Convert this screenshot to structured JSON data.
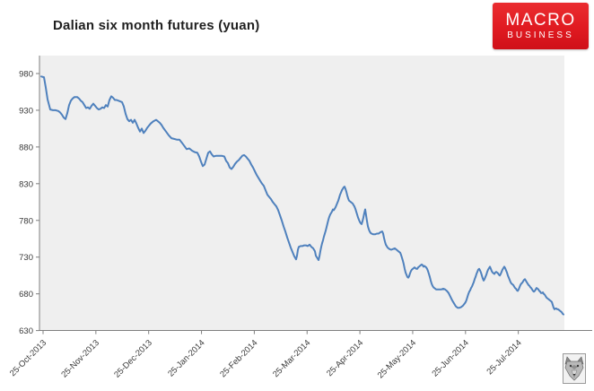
{
  "header": {
    "title": "Dalian six month futures (yuan)",
    "logo": {
      "line1": "MACRO",
      "line2": "BUSINESS",
      "bg_color": "#e01a21",
      "text_color": "#ffffff"
    }
  },
  "footer_logo": {
    "icon": "wolf-head"
  },
  "chart_data": {
    "type": "line",
    "title": "Dalian six month futures (yuan)",
    "legend": false,
    "grid": false,
    "plot_bg": "#efefef",
    "axis_color": "#7f7f7f",
    "tick_text_color": "#3a3a3a",
    "line_color": "#4f81bd",
    "ylim": [
      630,
      1004
    ],
    "y_tick_labels": [
      "980",
      "930",
      "880",
      "830",
      "780",
      "730",
      "680",
      "630"
    ],
    "y_tick_values": [
      980,
      930,
      880,
      830,
      780,
      730,
      680,
      630
    ],
    "x_tick_labels": [
      "25-Oct-2013",
      "25-Nov-2013",
      "25-Dec-2013",
      "25-Jan-2014",
      "25-Feb-2014",
      "25-Mar-2014",
      "25-Apr-2014",
      "25-May-2014",
      "25-Jun-2014",
      "25-Jul-2014"
    ],
    "points": [
      [
        46,
        976
      ],
      [
        49,
        975
      ],
      [
        51,
        961
      ],
      [
        53,
        945
      ],
      [
        56,
        931
      ],
      [
        59,
        930
      ],
      [
        62,
        930
      ],
      [
        65,
        929
      ],
      [
        67,
        927
      ],
      [
        69,
        924
      ],
      [
        71,
        920
      ],
      [
        73,
        918
      ],
      [
        75,
        926
      ],
      [
        77,
        937
      ],
      [
        79,
        943
      ],
      [
        81,
        946
      ],
      [
        83,
        948
      ],
      [
        86,
        948
      ],
      [
        88,
        946
      ],
      [
        90,
        943
      ],
      [
        92,
        941
      ],
      [
        94,
        937
      ],
      [
        96,
        933
      ],
      [
        98,
        934
      ],
      [
        100,
        932
      ],
      [
        102,
        936
      ],
      [
        104,
        939
      ],
      [
        106,
        936
      ],
      [
        108,
        933
      ],
      [
        110,
        931
      ],
      [
        112,
        932
      ],
      [
        114,
        934
      ],
      [
        116,
        933
      ],
      [
        118,
        937
      ],
      [
        120,
        935
      ],
      [
        122,
        944
      ],
      [
        124,
        949
      ],
      [
        126,
        947
      ],
      [
        128,
        944
      ],
      [
        130,
        944
      ],
      [
        132,
        943
      ],
      [
        134,
        942
      ],
      [
        136,
        941
      ],
      [
        138,
        935
      ],
      [
        140,
        925
      ],
      [
        142,
        918
      ],
      [
        144,
        915
      ],
      [
        146,
        917
      ],
      [
        148,
        913
      ],
      [
        150,
        917
      ],
      [
        152,
        912
      ],
      [
        154,
        906
      ],
      [
        156,
        901
      ],
      [
        158,
        905
      ],
      [
        160,
        899
      ],
      [
        162,
        902
      ],
      [
        164,
        906
      ],
      [
        166,
        909
      ],
      [
        168,
        912
      ],
      [
        171,
        915
      ],
      [
        174,
        917
      ],
      [
        176,
        915
      ],
      [
        178,
        913
      ],
      [
        180,
        910
      ],
      [
        182,
        906
      ],
      [
        185,
        901
      ],
      [
        188,
        896
      ],
      [
        191,
        892
      ],
      [
        194,
        891
      ],
      [
        197,
        890
      ],
      [
        200,
        890
      ],
      [
        202,
        887
      ],
      [
        205,
        882
      ],
      [
        208,
        877
      ],
      [
        211,
        878
      ],
      [
        214,
        875
      ],
      [
        217,
        873
      ],
      [
        220,
        872
      ],
      [
        222,
        867
      ],
      [
        224,
        860
      ],
      [
        226,
        854
      ],
      [
        228,
        856
      ],
      [
        230,
        864
      ],
      [
        232,
        872
      ],
      [
        234,
        874
      ],
      [
        236,
        870
      ],
      [
        238,
        867
      ],
      [
        241,
        868
      ],
      [
        244,
        868
      ],
      [
        247,
        868
      ],
      [
        250,
        867
      ],
      [
        252,
        861
      ],
      [
        254,
        858
      ],
      [
        256,
        852
      ],
      [
        258,
        850
      ],
      [
        260,
        853
      ],
      [
        262,
        857
      ],
      [
        264,
        860
      ],
      [
        266,
        862
      ],
      [
        268,
        865
      ],
      [
        270,
        868
      ],
      [
        272,
        869
      ],
      [
        274,
        867
      ],
      [
        276,
        864
      ],
      [
        278,
        861
      ],
      [
        280,
        856
      ],
      [
        282,
        852
      ],
      [
        284,
        847
      ],
      [
        286,
        842
      ],
      [
        288,
        838
      ],
      [
        290,
        834
      ],
      [
        292,
        830
      ],
      [
        294,
        827
      ],
      [
        296,
        821
      ],
      [
        298,
        815
      ],
      [
        300,
        812
      ],
      [
        302,
        809
      ],
      [
        304,
        805
      ],
      [
        306,
        802
      ],
      [
        308,
        799
      ],
      [
        310,
        794
      ],
      [
        312,
        787
      ],
      [
        314,
        780
      ],
      [
        316,
        772
      ],
      [
        318,
        765
      ],
      [
        320,
        757
      ],
      [
        322,
        750
      ],
      [
        324,
        743
      ],
      [
        326,
        737
      ],
      [
        328,
        731
      ],
      [
        330,
        727
      ],
      [
        331,
        732
      ],
      [
        332,
        740
      ],
      [
        333,
        744
      ],
      [
        335,
        745
      ],
      [
        337,
        745
      ],
      [
        339,
        746
      ],
      [
        341,
        746
      ],
      [
        343,
        745
      ],
      [
        345,
        747
      ],
      [
        347,
        744
      ],
      [
        349,
        742
      ],
      [
        351,
        738
      ],
      [
        352,
        732
      ],
      [
        354,
        728
      ],
      [
        355,
        726
      ],
      [
        356,
        731
      ],
      [
        357,
        738
      ],
      [
        358,
        744
      ],
      [
        359,
        749
      ],
      [
        360,
        753
      ],
      [
        361,
        758
      ],
      [
        362,
        762
      ],
      [
        363,
        766
      ],
      [
        364,
        771
      ],
      [
        365,
        776
      ],
      [
        366,
        781
      ],
      [
        367,
        785
      ],
      [
        368,
        788
      ],
      [
        369,
        790
      ],
      [
        370,
        792
      ],
      [
        371,
        795
      ],
      [
        372,
        794
      ],
      [
        373,
        796
      ],
      [
        374,
        798
      ],
      [
        375,
        801
      ],
      [
        376,
        804
      ],
      [
        377,
        807
      ],
      [
        378,
        811
      ],
      [
        379,
        815
      ],
      [
        380,
        818
      ],
      [
        381,
        821
      ],
      [
        382,
        823
      ],
      [
        383,
        825
      ],
      [
        384,
        826
      ],
      [
        385,
        823
      ],
      [
        386,
        819
      ],
      [
        387,
        814
      ],
      [
        388,
        810
      ],
      [
        389,
        807
      ],
      [
        390,
        806
      ],
      [
        391,
        805
      ],
      [
        392,
        804
      ],
      [
        393,
        803
      ],
      [
        394,
        801
      ],
      [
        395,
        799
      ],
      [
        396,
        796
      ],
      [
        397,
        792
      ],
      [
        398,
        788
      ],
      [
        399,
        784
      ],
      [
        400,
        781
      ],
      [
        401,
        778
      ],
      [
        402,
        776
      ],
      [
        403,
        775
      ],
      [
        404,
        779
      ],
      [
        405,
        784
      ],
      [
        406,
        790
      ],
      [
        407,
        795
      ],
      [
        408,
        787
      ],
      [
        409,
        779
      ],
      [
        410,
        772
      ],
      [
        411,
        768
      ],
      [
        412,
        765
      ],
      [
        413,
        763
      ],
      [
        414,
        762
      ],
      [
        416,
        761
      ],
      [
        418,
        761
      ],
      [
        420,
        762
      ],
      [
        422,
        762
      ],
      [
        424,
        764
      ],
      [
        426,
        765
      ],
      [
        427,
        762
      ],
      [
        428,
        756
      ],
      [
        429,
        751
      ],
      [
        430,
        747
      ],
      [
        432,
        743
      ],
      [
        434,
        741
      ],
      [
        436,
        740
      ],
      [
        438,
        741
      ],
      [
        440,
        742
      ],
      [
        442,
        740
      ],
      [
        444,
        738
      ],
      [
        446,
        736
      ],
      [
        447,
        733
      ],
      [
        448,
        729
      ],
      [
        449,
        725
      ],
      [
        450,
        720
      ],
      [
        451,
        714
      ],
      [
        452,
        709
      ],
      [
        453,
        706
      ],
      [
        454,
        703
      ],
      [
        455,
        702
      ],
      [
        456,
        704
      ],
      [
        457,
        708
      ],
      [
        458,
        711
      ],
      [
        459,
        713
      ],
      [
        460,
        714
      ],
      [
        461,
        715
      ],
      [
        462,
        716
      ],
      [
        463,
        715
      ],
      [
        464,
        714
      ],
      [
        465,
        714
      ],
      [
        466,
        716
      ],
      [
        467,
        717
      ],
      [
        468,
        718
      ],
      [
        469,
        719
      ],
      [
        470,
        720
      ],
      [
        471,
        719
      ],
      [
        472,
        717
      ],
      [
        473,
        718
      ],
      [
        474,
        717
      ],
      [
        475,
        716
      ],
      [
        476,
        714
      ],
      [
        477,
        711
      ],
      [
        478,
        707
      ],
      [
        479,
        703
      ],
      [
        480,
        698
      ],
      [
        481,
        694
      ],
      [
        482,
        691
      ],
      [
        483,
        689
      ],
      [
        484,
        688
      ],
      [
        485,
        687
      ],
      [
        486,
        686
      ],
      [
        488,
        686
      ],
      [
        490,
        686
      ],
      [
        492,
        686
      ],
      [
        494,
        687
      ],
      [
        496,
        686
      ],
      [
        498,
        684
      ],
      [
        500,
        681
      ],
      [
        502,
        676
      ],
      [
        504,
        671
      ],
      [
        506,
        667
      ],
      [
        508,
        663
      ],
      [
        510,
        661
      ],
      [
        512,
        661
      ],
      [
        514,
        662
      ],
      [
        516,
        664
      ],
      [
        518,
        667
      ],
      [
        519,
        669
      ],
      [
        520,
        672
      ],
      [
        521,
        676
      ],
      [
        522,
        680
      ],
      [
        523,
        683
      ],
      [
        524,
        685
      ],
      [
        525,
        688
      ],
      [
        526,
        690
      ],
      [
        527,
        693
      ],
      [
        528,
        696
      ],
      [
        529,
        700
      ],
      [
        530,
        703
      ],
      [
        531,
        707
      ],
      [
        532,
        710
      ],
      [
        533,
        713
      ],
      [
        534,
        714
      ],
      [
        535,
        712
      ],
      [
        536,
        709
      ],
      [
        537,
        705
      ],
      [
        538,
        701
      ],
      [
        539,
        698
      ],
      [
        540,
        700
      ],
      [
        541,
        703
      ],
      [
        542,
        706
      ],
      [
        543,
        710
      ],
      [
        544,
        713
      ],
      [
        545,
        715
      ],
      [
        546,
        717
      ],
      [
        547,
        714
      ],
      [
        548,
        711
      ],
      [
        549,
        709
      ],
      [
        550,
        708
      ],
      [
        551,
        707
      ],
      [
        552,
        709
      ],
      [
        553,
        710
      ],
      [
        554,
        709
      ],
      [
        555,
        708
      ],
      [
        556,
        706
      ],
      [
        557,
        705
      ],
      [
        558,
        707
      ],
      [
        559,
        710
      ],
      [
        560,
        713
      ],
      [
        561,
        715
      ],
      [
        562,
        717
      ],
      [
        563,
        715
      ],
      [
        564,
        712
      ],
      [
        565,
        709
      ],
      [
        566,
        705
      ],
      [
        567,
        702
      ],
      [
        568,
        699
      ],
      [
        569,
        696
      ],
      [
        570,
        694
      ],
      [
        571,
        693
      ],
      [
        572,
        692
      ],
      [
        573,
        690
      ],
      [
        574,
        688
      ],
      [
        575,
        687
      ],
      [
        576,
        685
      ],
      [
        577,
        684
      ],
      [
        578,
        686
      ],
      [
        579,
        689
      ],
      [
        580,
        692
      ],
      [
        581,
        694
      ],
      [
        582,
        695
      ],
      [
        583,
        697
      ],
      [
        584,
        699
      ],
      [
        585,
        700
      ],
      [
        586,
        698
      ],
      [
        587,
        696
      ],
      [
        588,
        694
      ],
      [
        589,
        692
      ],
      [
        590,
        691
      ],
      [
        591,
        689
      ],
      [
        592,
        688
      ],
      [
        593,
        686
      ],
      [
        594,
        684
      ],
      [
        595,
        683
      ],
      [
        596,
        684
      ],
      [
        597,
        686
      ],
      [
        598,
        688
      ],
      [
        599,
        687
      ],
      [
        600,
        686
      ],
      [
        601,
        684
      ],
      [
        602,
        683
      ],
      [
        603,
        681
      ],
      [
        604,
        681
      ],
      [
        605,
        682
      ],
      [
        606,
        680
      ],
      [
        607,
        679
      ],
      [
        608,
        677
      ],
      [
        609,
        675
      ],
      [
        610,
        674
      ],
      [
        611,
        673
      ],
      [
        612,
        672
      ],
      [
        613,
        671
      ],
      [
        614,
        670
      ],
      [
        615,
        669
      ],
      [
        616,
        665
      ],
      [
        617,
        661
      ],
      [
        618,
        659
      ],
      [
        619,
        660
      ],
      [
        620,
        660
      ],
      [
        621,
        659
      ],
      [
        622,
        659
      ],
      [
        623,
        658
      ],
      [
        624,
        657
      ],
      [
        625,
        656
      ],
      [
        626,
        655
      ],
      [
        627,
        653
      ],
      [
        628,
        652
      ]
    ]
  }
}
